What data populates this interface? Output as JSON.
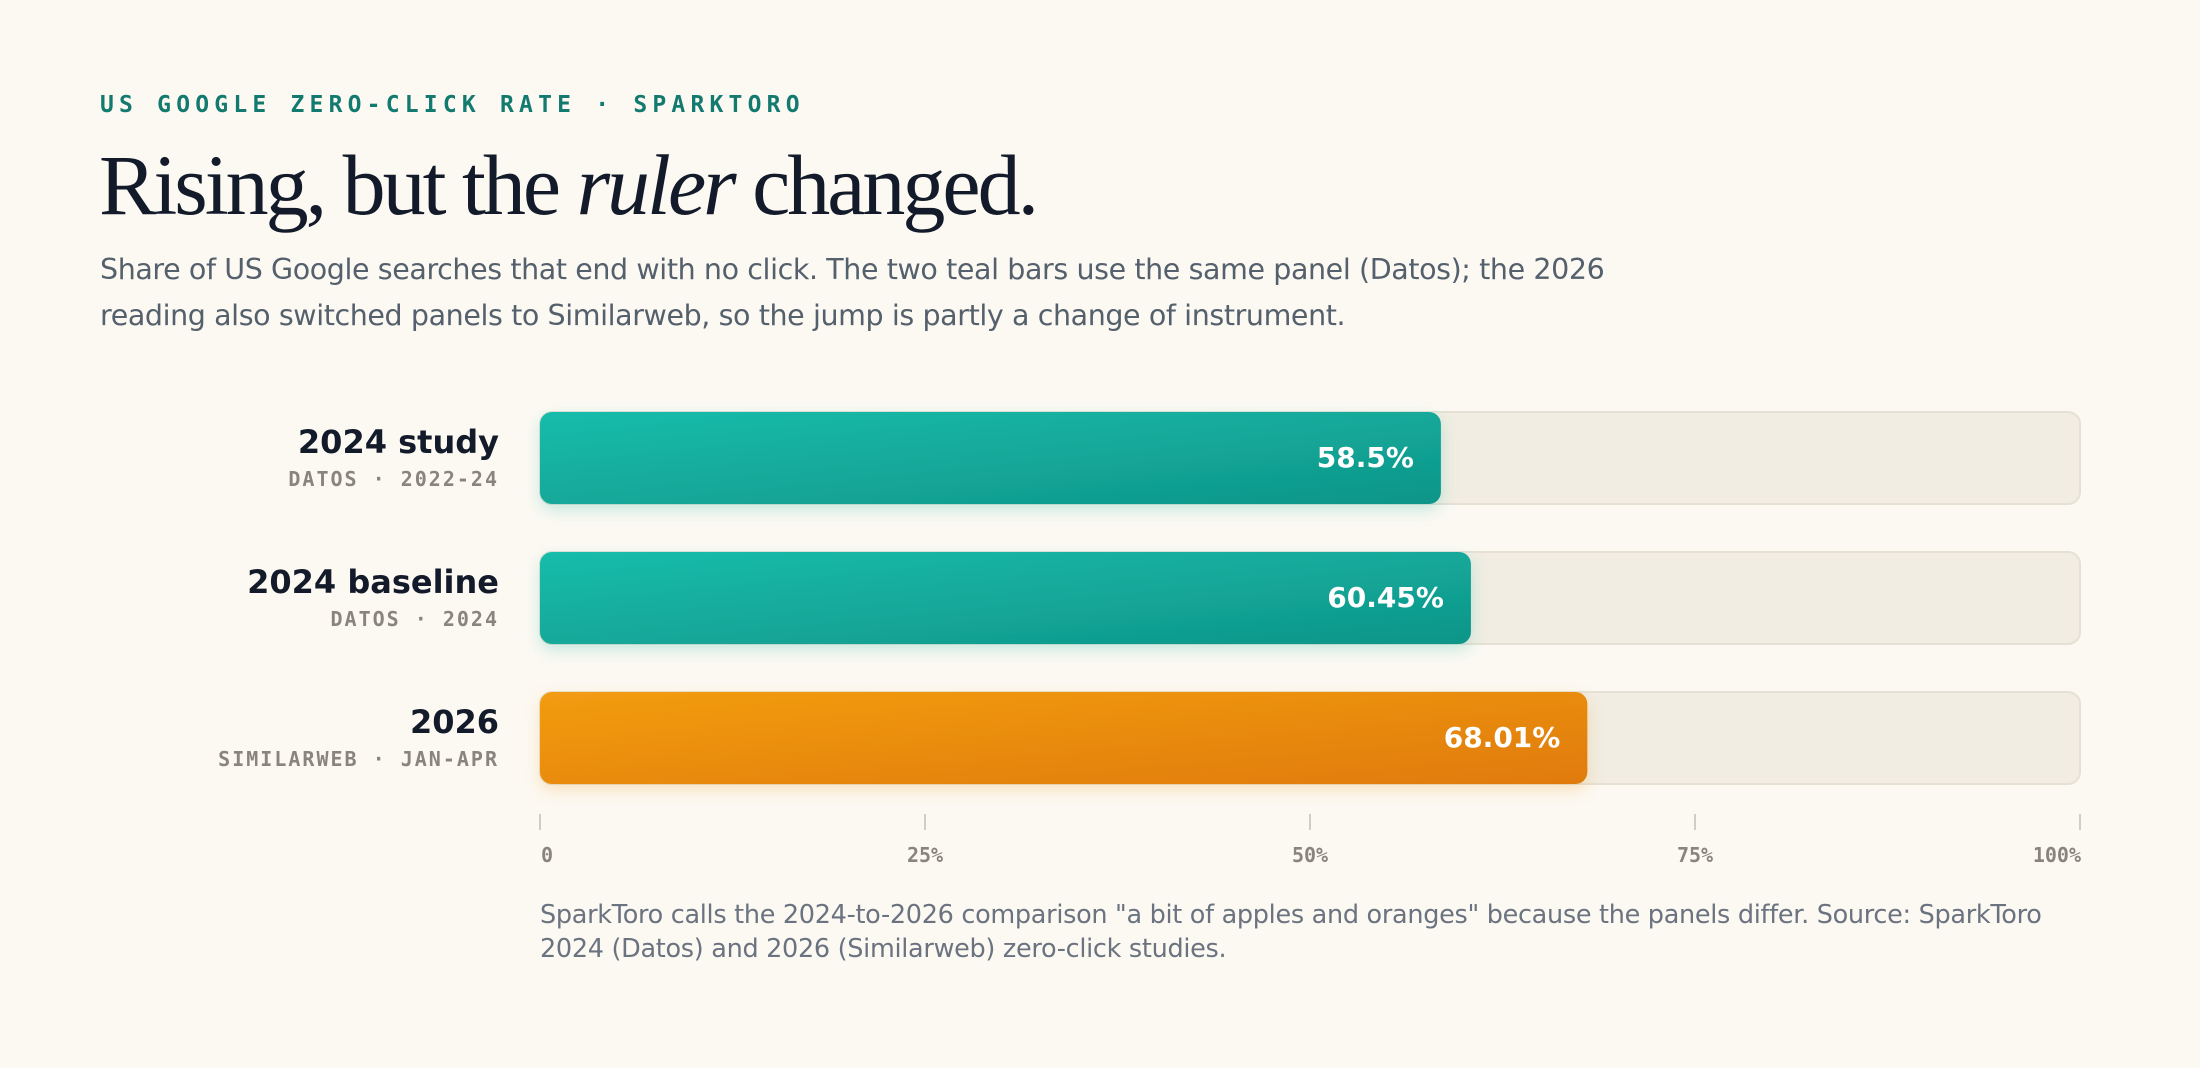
{
  "header": {
    "eyebrow": "US GOOGLE ZERO-CLICK RATE · SPARKTORO",
    "title_before": "Rising, but the ",
    "title_emphasis": "ruler",
    "title_after": " changed.",
    "subtitle": "Share of US Google searches that end with no click. The two teal bars use the same panel (Datos); the 2026 reading also switched panels to Similarweb, so the jump is partly a change of instrument."
  },
  "chart_data": {
    "type": "bar",
    "orientation": "horizontal",
    "categories": [
      "2024 study",
      "2024 baseline",
      "2026"
    ],
    "sources": [
      "DATOS · 2022-24",
      "DATOS · 2024",
      "SIMILARWEB · JAN-APR"
    ],
    "values": [
      58.5,
      60.45,
      68.01
    ],
    "value_labels": [
      "58.5%",
      "60.45%",
      "68.01%"
    ],
    "bar_colors": [
      "#14b0a0",
      "#14b0a0",
      "#ec8c0c"
    ],
    "xlim": [
      0,
      100
    ],
    "xticks": [
      0,
      25,
      50,
      75,
      100
    ],
    "xtick_labels": [
      "0",
      "25%",
      "50%",
      "75%",
      "100%"
    ],
    "grid": false,
    "legend": "none"
  },
  "footnote": "SparkToro calls the 2024-to-2026 comparison \"a bit of apples and oranges\" because the panels differ. Source: SparkToro 2024 (Datos) and 2026 (Similarweb) zero-click studies.",
  "colors": {
    "background": "#fcf9f2",
    "accent": "#137a6f",
    "teal": "#14b0a0",
    "orange": "#ec8c0c",
    "track": "#f1ede2",
    "title": "#131b2b"
  }
}
